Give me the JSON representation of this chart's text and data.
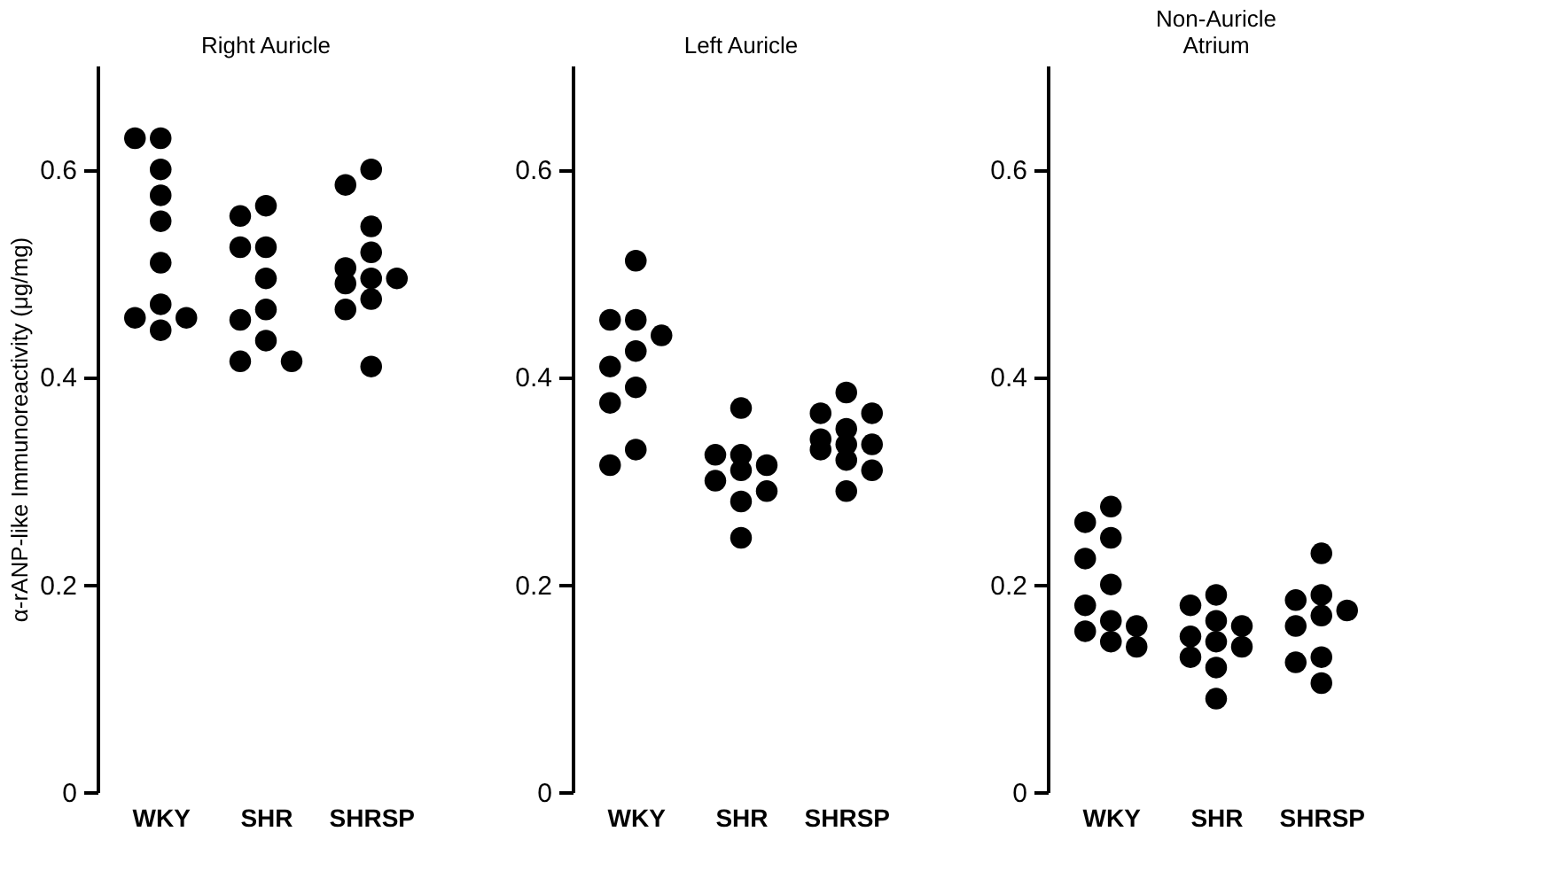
{
  "chart_data": [
    {
      "type": "scatter",
      "title": "Right Auricle",
      "ylabel": "α-rANP-like Immunoreactivity (μg/mg)",
      "categories": [
        "WKY",
        "SHR",
        "SHRSP"
      ],
      "ylim": [
        0,
        0.7
      ],
      "yticks": [
        0,
        0.2,
        0.4,
        0.6
      ],
      "grid": false,
      "marker": "circle",
      "series": [
        {
          "color": "#000000",
          "x": [
            "WKY",
            "WKY",
            "WKY",
            "WKY",
            "WKY",
            "WKY",
            "WKY",
            "WKY",
            "WKY",
            "WKY",
            "SHR",
            "SHR",
            "SHR",
            "SHR",
            "SHR",
            "SHR",
            "SHR",
            "SHR",
            "SHR",
            "SHR",
            "SHRSP",
            "SHRSP",
            "SHRSP",
            "SHRSP",
            "SHRSP",
            "SHRSP",
            "SHRSP",
            "SHRSP",
            "SHRSP",
            "SHRSP",
            "SHRSP"
          ],
          "values": [
            0.63,
            0.63,
            0.6,
            0.575,
            0.55,
            0.51,
            0.47,
            0.457,
            0.457,
            0.445,
            0.565,
            0.555,
            0.525,
            0.525,
            0.495,
            0.465,
            0.455,
            0.435,
            0.415,
            0.415,
            0.6,
            0.585,
            0.545,
            0.52,
            0.505,
            0.495,
            0.495,
            0.49,
            0.475,
            0.465,
            0.41
          ]
        }
      ]
    },
    {
      "type": "scatter",
      "title": "Left Auricle",
      "categories": [
        "WKY",
        "SHR",
        "SHRSP"
      ],
      "ylim": [
        0,
        0.7
      ],
      "yticks": [
        0,
        0.2,
        0.4,
        0.6
      ],
      "grid": false,
      "marker": "circle",
      "series": [
        {
          "color": "#000000",
          "x": [
            "WKY",
            "WKY",
            "WKY",
            "WKY",
            "WKY",
            "WKY",
            "WKY",
            "WKY",
            "WKY",
            "WKY",
            "SHR",
            "SHR",
            "SHR",
            "SHR",
            "SHR",
            "SHR",
            "SHR",
            "SHR",
            "SHR",
            "SHRSP",
            "SHRSP",
            "SHRSP",
            "SHRSP",
            "SHRSP",
            "SHRSP",
            "SHRSP",
            "SHRSP",
            "SHRSP",
            "SHRSP",
            "SHRSP"
          ],
          "values": [
            0.512,
            0.455,
            0.455,
            0.44,
            0.425,
            0.41,
            0.39,
            0.375,
            0.33,
            0.315,
            0.37,
            0.325,
            0.325,
            0.315,
            0.31,
            0.3,
            0.29,
            0.28,
            0.245,
            0.385,
            0.365,
            0.365,
            0.35,
            0.34,
            0.335,
            0.335,
            0.33,
            0.32,
            0.31,
            0.29
          ]
        }
      ]
    },
    {
      "type": "scatter",
      "title": "Non-Auricle Atrium",
      "categories": [
        "WKY",
        "SHR",
        "SHRSP"
      ],
      "ylim": [
        0,
        0.7
      ],
      "yticks": [
        0,
        0.2,
        0.4,
        0.6
      ],
      "grid": false,
      "marker": "circle",
      "series": [
        {
          "color": "#000000",
          "x": [
            "WKY",
            "WKY",
            "WKY",
            "WKY",
            "WKY",
            "WKY",
            "WKY",
            "WKY",
            "WKY",
            "WKY",
            "WKY",
            "SHR",
            "SHR",
            "SHR",
            "SHR",
            "SHR",
            "SHR",
            "SHR",
            "SHR",
            "SHR",
            "SHR",
            "SHRSP",
            "SHRSP",
            "SHRSP",
            "SHRSP",
            "SHRSP",
            "SHRSP",
            "SHRSP",
            "SHRSP",
            "SHRSP"
          ],
          "values": [
            0.275,
            0.26,
            0.245,
            0.225,
            0.2,
            0.18,
            0.165,
            0.16,
            0.155,
            0.145,
            0.14,
            0.19,
            0.18,
            0.165,
            0.16,
            0.15,
            0.145,
            0.14,
            0.13,
            0.12,
            0.09,
            0.23,
            0.19,
            0.185,
            0.175,
            0.17,
            0.16,
            0.13,
            0.125,
            0.105
          ]
        }
      ]
    }
  ]
}
